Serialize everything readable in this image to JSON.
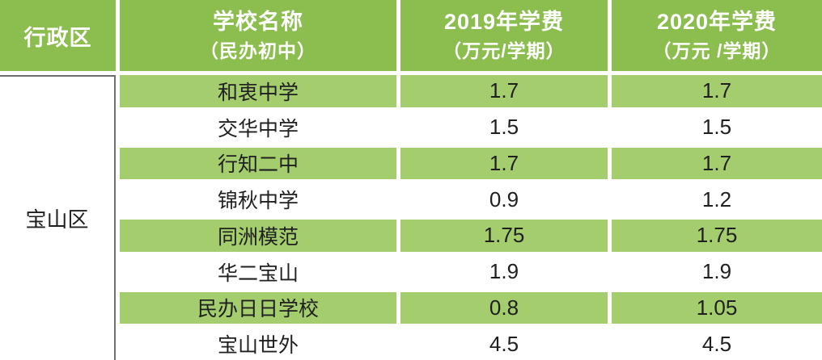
{
  "colors": {
    "header_bg": "#8cbe4f",
    "stripe_bg": "#a4cd6d",
    "header_text": "#ffffff",
    "body_text": "#1f1f1f",
    "district_border": "#6f6f6f"
  },
  "table": {
    "header": {
      "district": "行政区",
      "school_title": "学校名称",
      "school_subtitle": "（民办初中）",
      "fee2019_title": "2019年学费",
      "fee2019_subtitle": "（万元/学期）",
      "fee2020_title": "2020年学费",
      "fee2020_subtitle": "（万元 /学期）"
    },
    "district": "宝山区",
    "rows": [
      {
        "school": "和衷中学",
        "fee_2019": "1.7",
        "fee_2020": "1.7"
      },
      {
        "school": "交华中学",
        "fee_2019": "1.5",
        "fee_2020": "1.5"
      },
      {
        "school": "行知二中",
        "fee_2019": "1.7",
        "fee_2020": "1.7"
      },
      {
        "school": "锦秋中学",
        "fee_2019": "0.9",
        "fee_2020": "1.2"
      },
      {
        "school": "同洲模范",
        "fee_2019": "1.75",
        "fee_2020": "1.75"
      },
      {
        "school": "华二宝山",
        "fee_2019": "1.9",
        "fee_2020": "1.9"
      },
      {
        "school": "民办日日学校",
        "fee_2019": "0.8",
        "fee_2020": "1.05"
      },
      {
        "school": "宝山世外",
        "fee_2019": "4.5",
        "fee_2020": "4.5"
      }
    ]
  },
  "chart_data": {
    "type": "table",
    "title": "",
    "columns": [
      "行政区",
      "学校名称（民办初中）",
      "2019年学费（万元/学期）",
      "2020年学费（万元 /学期）"
    ],
    "district": "宝山区",
    "rows": [
      [
        "和衷中学",
        1.7,
        1.7
      ],
      [
        "交华中学",
        1.5,
        1.5
      ],
      [
        "行知二中",
        1.7,
        1.7
      ],
      [
        "锦秋中学",
        0.9,
        1.2
      ],
      [
        "同洲模范",
        1.75,
        1.75
      ],
      [
        "华二宝山",
        1.9,
        1.9
      ],
      [
        "民办日日学校",
        0.8,
        1.05
      ],
      [
        "宝山世外",
        4.5,
        4.5
      ]
    ]
  }
}
